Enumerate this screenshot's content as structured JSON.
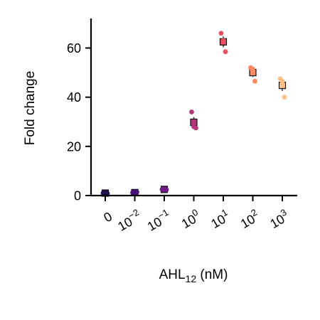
{
  "chart_data": {
    "type": "scatter",
    "title": "",
    "ylabel": "Fold change",
    "xlabel": {
      "base": "AHL",
      "sub": "12",
      "suffix": " (nM)"
    },
    "ylim": [
      0,
      72
    ],
    "yticks": [
      0,
      20,
      40,
      60
    ],
    "grid": false,
    "legend": "none",
    "categories": [
      {
        "base": "0",
        "exp": ""
      },
      {
        "base": "10",
        "exp": "−2"
      },
      {
        "base": "10",
        "exp": "−1"
      },
      {
        "base": "10",
        "exp": "0"
      },
      {
        "base": "10",
        "exp": "1"
      },
      {
        "base": "10",
        "exp": "2"
      },
      {
        "base": "10",
        "exp": "3"
      }
    ],
    "groups": [
      {
        "points": [
          1.0,
          1.1,
          0.9
        ],
        "mean": 1.0,
        "sem": 0.1,
        "color": "#221150"
      },
      {
        "points": [
          1.2,
          1.0,
          1.4
        ],
        "mean": 1.2,
        "sem": 0.1,
        "color": "#4a1079"
      },
      {
        "points": [
          2.5,
          2.6,
          2.4
        ],
        "mean": 2.5,
        "sem": 0.1,
        "color": "#6d1d81"
      },
      {
        "points": [
          34.0,
          28.0,
          27.5
        ],
        "mean": 29.8,
        "sem": 2.1,
        "color": "#b5367a"
      },
      {
        "points": [
          66.0,
          63.0,
          58.5
        ],
        "mean": 62.5,
        "sem": 2.2,
        "color": "#e55064"
      },
      {
        "points": [
          52.0,
          51.5,
          46.5
        ],
        "mean": 50.0,
        "sem": 1.8,
        "color": "#fb8861"
      },
      {
        "points": [
          47.5,
          46.5,
          40.0
        ],
        "mean": 44.8,
        "sem": 2.3,
        "color": "#fec287"
      }
    ]
  }
}
